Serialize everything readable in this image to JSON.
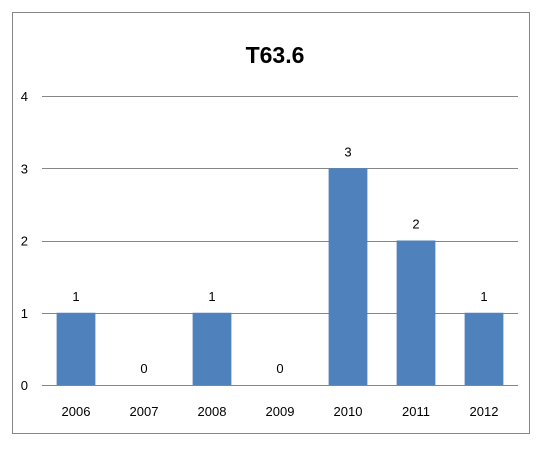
{
  "chart_data": {
    "type": "bar",
    "title": "T63.6",
    "xlabel": "",
    "ylabel": "",
    "categories": [
      "2006",
      "2007",
      "2008",
      "2009",
      "2010",
      "2011",
      "2012"
    ],
    "values": [
      1,
      0,
      1,
      0,
      3,
      2,
      1
    ],
    "ylim": [
      0,
      4
    ],
    "yticks": [
      0,
      1,
      2,
      3,
      4
    ],
    "grid": true,
    "legend": "none",
    "data_labels": true,
    "bar_color": "#4f81bd",
    "gridline_color": "#868686"
  }
}
